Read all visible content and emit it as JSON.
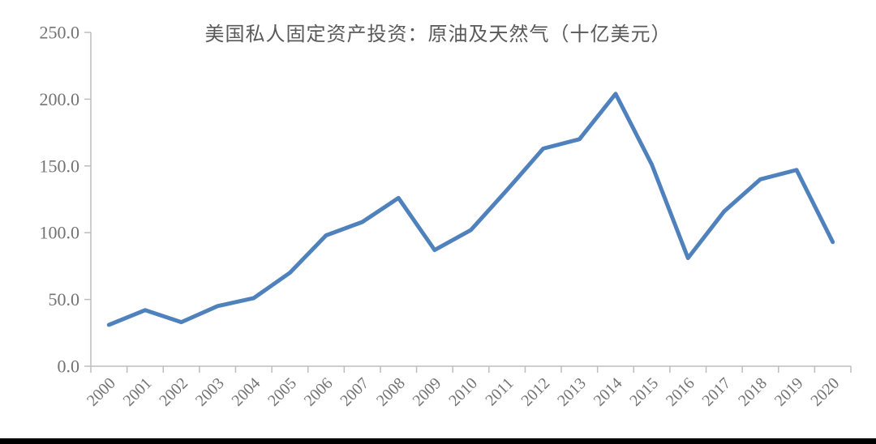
{
  "page": {
    "background_color": "#ffffff",
    "bottom_divider_color": "#000000"
  },
  "chart_data": {
    "type": "line",
    "title": "美国私人固定资产投资：原油及天然气（十亿美元）",
    "categories": [
      "2000",
      "2001",
      "2002",
      "2003",
      "2004",
      "2005",
      "2006",
      "2007",
      "2008",
      "2009",
      "2010",
      "2011",
      "2012",
      "2013",
      "2014",
      "2015",
      "2016",
      "2017",
      "2018",
      "2019",
      "2020"
    ],
    "series": [
      {
        "name": "美国私人固定资产投资：原油及天然气",
        "values": [
          31,
          42,
          33,
          45,
          51,
          70,
          98,
          108,
          126,
          87,
          102,
          132,
          163,
          170,
          204,
          151,
          81,
          116,
          140,
          147,
          93
        ]
      }
    ],
    "xlabel": "",
    "ylabel": "",
    "ylim": [
      0,
      250
    ],
    "ytick_step": 50,
    "ytick_labels": [
      "0.0",
      "50.0",
      "100.0",
      "150.0",
      "200.0",
      "250.0"
    ],
    "grid": false,
    "legend_position": "none",
    "line_color": "#4F81BD",
    "axis_color": "#BDBDBD",
    "text_color": "#737373",
    "title_color": "#595959",
    "x_label_rotation_deg": -45
  }
}
